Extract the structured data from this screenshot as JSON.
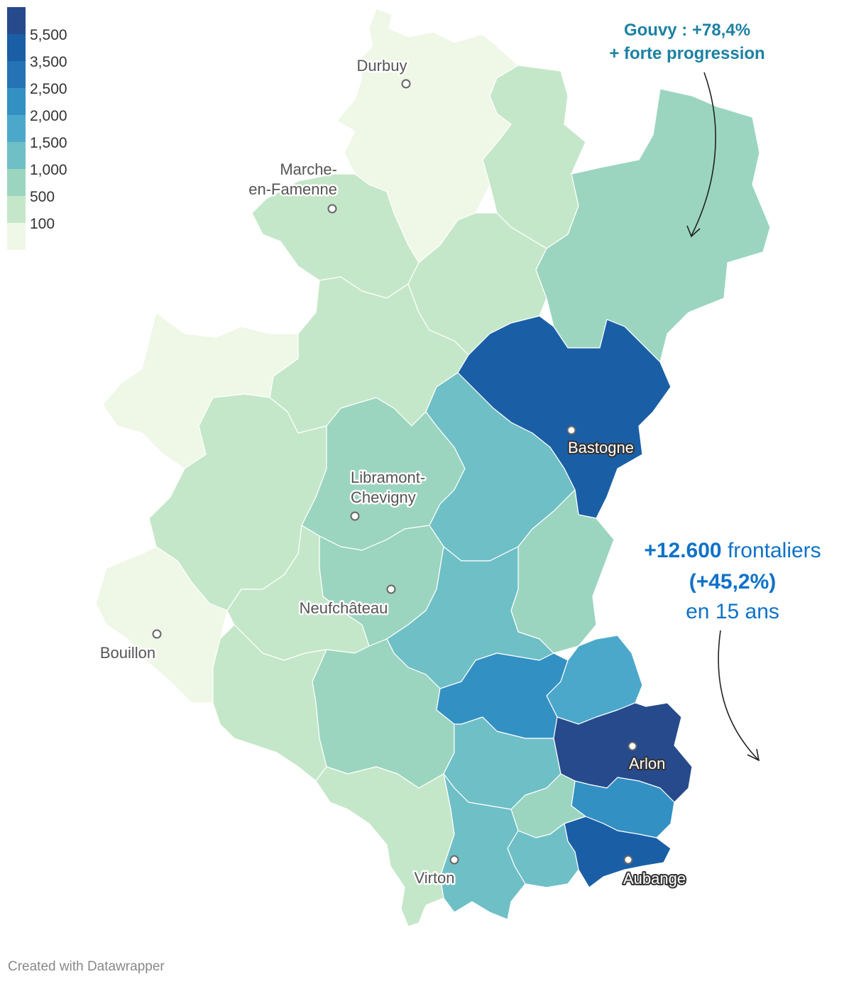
{
  "legend": {
    "bins": [
      {
        "label": "5,500",
        "color": "#264a8c"
      },
      {
        "label": "3,500",
        "color": "#1a5fa6"
      },
      {
        "label": "2,500",
        "color": "#2573b5"
      },
      {
        "label": "2,000",
        "color": "#3390c3"
      },
      {
        "label": "1,500",
        "color": "#4ba8cb"
      },
      {
        "label": "1,000",
        "color": "#6fbfc6"
      },
      {
        "label": "500",
        "color": "#9bd5c0"
      },
      {
        "label": "100",
        "color": "#c5e7c9"
      }
    ],
    "lowest_color": "#eff7e7"
  },
  "cities": [
    {
      "id": "durbuy",
      "name": "Durbuy",
      "style": "light"
    },
    {
      "id": "marche",
      "name": "Marche-en-Famenne",
      "lines": [
        "Marche-",
        "en-Famenne"
      ],
      "style": "light"
    },
    {
      "id": "libramont",
      "name": "Libramont-Chevigny",
      "lines": [
        "Libramont-",
        "Chevigny"
      ],
      "style": "light"
    },
    {
      "id": "neufchateau",
      "name": "Neufchâteau",
      "style": "light"
    },
    {
      "id": "bouillon",
      "name": "Bouillon",
      "style": "light"
    },
    {
      "id": "bastogne",
      "name": "Bastogne",
      "style": "dark"
    },
    {
      "id": "arlon",
      "name": "Arlon",
      "style": "dark"
    },
    {
      "id": "aubange",
      "name": "Aubange",
      "style": "dark"
    },
    {
      "id": "virton",
      "name": "Virton",
      "style": "light"
    }
  ],
  "annotations": {
    "gouvy_line1": "Gouvy : +78,4%",
    "gouvy_line2": "+ forte progression",
    "main_bold": "+12.600",
    "main_rest": " frontaliers",
    "main_line2": "(+45,2%)",
    "main_line3": "en 15 ans"
  },
  "credit": "Created with Datawrapper"
}
